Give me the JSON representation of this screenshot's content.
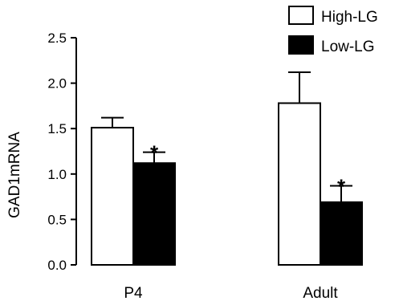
{
  "chart_data": {
    "type": "bar",
    "categories": [
      "P4",
      "Adult"
    ],
    "series": [
      {
        "name": "High-LG",
        "values": [
          1.51,
          1.78
        ],
        "errors": [
          0.11,
          0.34
        ],
        "fill": "#ffffff",
        "marks": [
          "",
          ""
        ]
      },
      {
        "name": "Low-LG",
        "values": [
          1.12,
          0.69
        ],
        "errors": [
          0.12,
          0.18
        ],
        "fill": "#000000",
        "marks": [
          "*",
          "*"
        ]
      }
    ],
    "title": "",
    "xlabel": "",
    "ylabel": "GAD1mRNA",
    "ylim": [
      0,
      2.5
    ],
    "yticks": [
      "0.0",
      "0.5",
      "1.0",
      "1.5",
      "2.0",
      "2.5"
    ],
    "grid": false,
    "legend_position": "top-right",
    "error_bars": "upper"
  }
}
